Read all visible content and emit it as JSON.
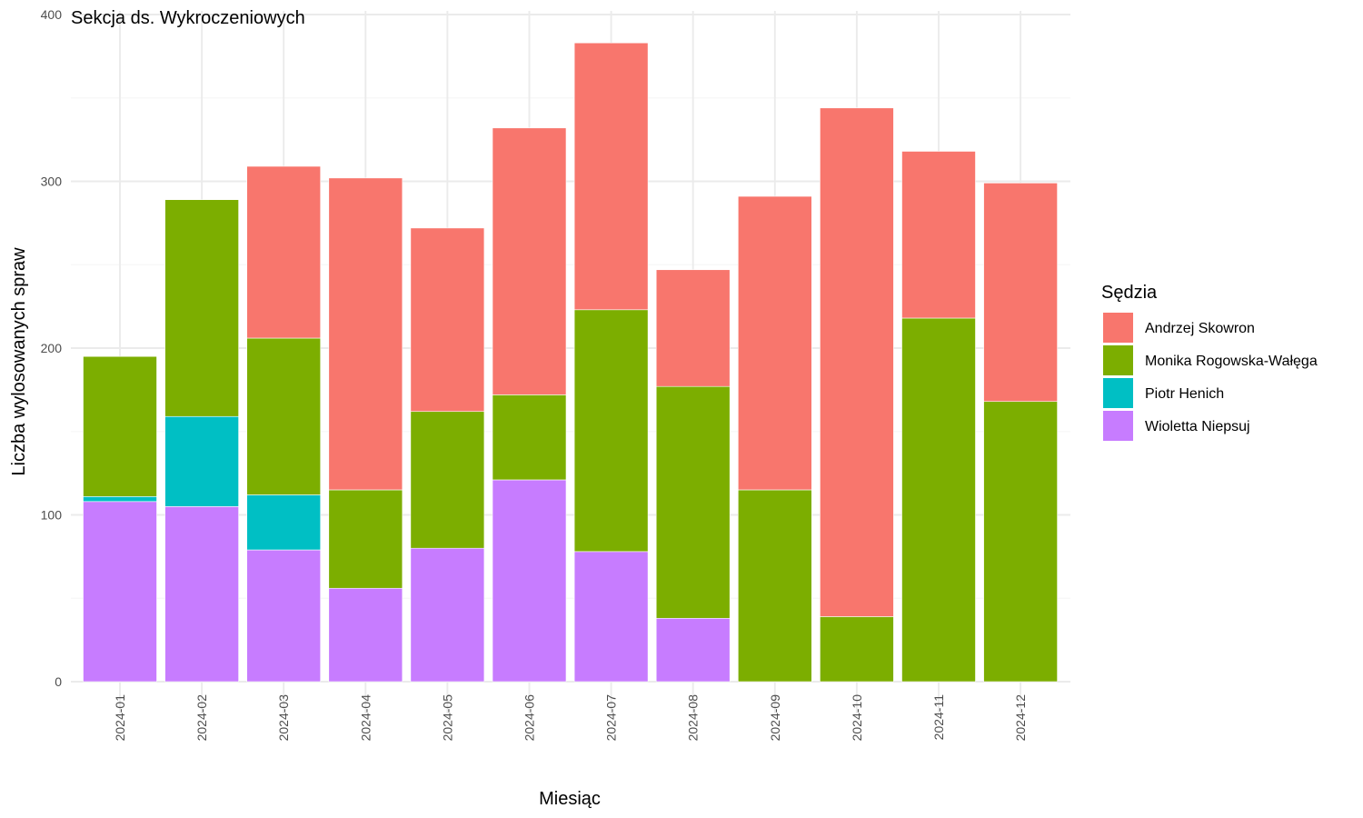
{
  "chart_data": {
    "type": "bar",
    "stacked": true,
    "title": "Sekcja ds. Wykroczeniowych",
    "xlabel": "Miesiąc",
    "ylabel": "Liczba wylosowanych spraw",
    "ylim": [
      0,
      400
    ],
    "yticks": [
      0,
      100,
      200,
      300,
      400
    ],
    "grid": true,
    "legend_title": "Sędzia",
    "legend_position": "right",
    "categories": [
      "2024-01",
      "2024-02",
      "2024-03",
      "2024-04",
      "2024-05",
      "2024-06",
      "2024-07",
      "2024-08",
      "2024-09",
      "2024-10",
      "2024-11",
      "2024-12"
    ],
    "series": [
      {
        "name": "Andrzej Skowron",
        "color": "#F8766D",
        "values": [
          0,
          0,
          103,
          187,
          110,
          160,
          160,
          70,
          176,
          305,
          100,
          131
        ]
      },
      {
        "name": "Monika Rogowska-Wałęga",
        "color": "#7CAE00",
        "values": [
          84,
          130,
          94,
          59,
          82,
          51,
          145,
          139,
          115,
          39,
          218,
          168
        ]
      },
      {
        "name": "Piotr Henich",
        "color": "#00BFC4",
        "values": [
          3,
          54,
          33,
          0,
          0,
          0,
          0,
          0,
          0,
          0,
          0,
          0
        ]
      },
      {
        "name": "Wioletta Niepsuj",
        "color": "#C77CFF",
        "values": [
          108,
          105,
          79,
          56,
          80,
          121,
          78,
          38,
          0,
          0,
          0,
          0
        ]
      }
    ]
  }
}
